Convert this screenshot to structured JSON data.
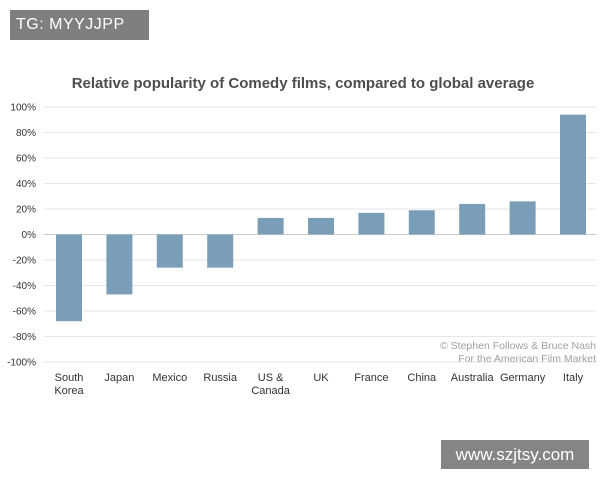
{
  "overlay_tag": "TG: MYYJJPP",
  "overlay_site": "www.szjtsy.com",
  "colors": {
    "bar": "#7b9eb8",
    "title": "#4d4d4d",
    "grid": "#e6e6e6",
    "credit": "#a0a0a0"
  },
  "chart_data": {
    "type": "bar",
    "title": "Relative popularity of Comedy films, compared to global average",
    "xlabel": "",
    "ylabel": "",
    "ylim": [
      -100,
      100
    ],
    "yticks": [
      100,
      80,
      60,
      40,
      20,
      0,
      -20,
      -40,
      -60,
      -80,
      -100
    ],
    "ytick_labels": [
      "100%",
      "80%",
      "60%",
      "40%",
      "20%",
      "0%",
      "-20%",
      "-40%",
      "-60%",
      "-80%",
      "-100%"
    ],
    "categories": [
      [
        "South",
        "Korea"
      ],
      [
        "Japan"
      ],
      [
        "Mexico"
      ],
      [
        "Russia"
      ],
      [
        "US &",
        "Canada"
      ],
      [
        "UK"
      ],
      [
        "France"
      ],
      [
        "China"
      ],
      [
        "Australia"
      ],
      [
        "Germany"
      ],
      [
        "Italy"
      ]
    ],
    "values": [
      -68,
      -47,
      -26,
      -26,
      13,
      13,
      17,
      19,
      24,
      26,
      94
    ],
    "credit": [
      "© Stephen Follows & Bruce Nash",
      "For the American Film Market"
    ]
  }
}
